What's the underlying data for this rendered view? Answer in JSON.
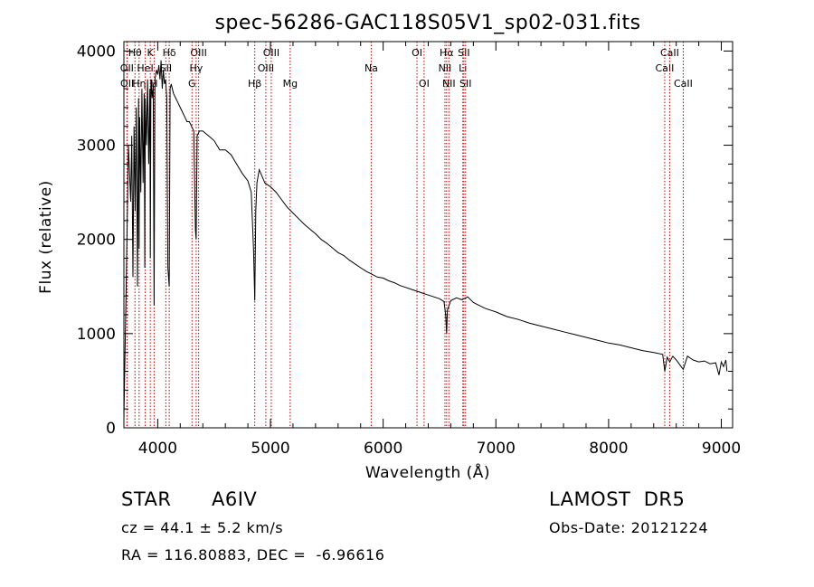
{
  "chart_data": {
    "type": "line",
    "title": "spec-56286-GAC118S05V1_sp02-031.fits",
    "xlabel": "Wavelength (Å)",
    "ylabel": "Flux (relative)",
    "xlim": [
      3700,
      9100
    ],
    "ylim": [
      0,
      4100
    ],
    "xticks": [
      4000,
      5000,
      6000,
      7000,
      8000,
      9000
    ],
    "yticks": [
      0,
      1000,
      2000,
      3000,
      4000
    ],
    "grid": false,
    "series": [
      {
        "x": [
          3700,
          3720,
          3740,
          3760,
          3770,
          3780,
          3790,
          3800,
          3810,
          3820,
          3830,
          3835,
          3840,
          3850,
          3860,
          3870,
          3880,
          3885,
          3890,
          3900,
          3910,
          3920,
          3930,
          3934,
          3940,
          3950,
          3960,
          3968,
          3975,
          3990,
          4000,
          4010,
          4020,
          4030,
          4040,
          4050,
          4060,
          4070,
          4080,
          4090,
          4102,
          4110,
          4120,
          4140,
          4160,
          4180,
          4200,
          4220,
          4240,
          4260,
          4280,
          4300,
          4320,
          4335,
          4341,
          4350,
          4370,
          4400,
          4450,
          4500,
          4550,
          4600,
          4650,
          4700,
          4750,
          4800,
          4830,
          4850,
          4861,
          4870,
          4880,
          4900,
          4950,
          5000,
          5050,
          5100,
          5150,
          5200,
          5250,
          5300,
          5350,
          5400,
          5450,
          5500,
          5550,
          5600,
          5650,
          5700,
          5750,
          5800,
          5850,
          5900,
          5950,
          6000,
          6050,
          6100,
          6150,
          6200,
          6250,
          6300,
          6350,
          6400,
          6450,
          6500,
          6540,
          6555,
          6563,
          6570,
          6600,
          6650,
          6700,
          6750,
          6800,
          6850,
          6900,
          6950,
          7000,
          7100,
          7200,
          7300,
          7400,
          7500,
          7600,
          7700,
          7800,
          7900,
          8000,
          8100,
          8200,
          8300,
          8400,
          8480,
          8498,
          8520,
          8542,
          8570,
          8600,
          8662,
          8700,
          8750,
          8800,
          8850,
          8900,
          8950,
          8980,
          9000,
          9020,
          9040,
          9050
        ],
        "y": [
          100,
          1500,
          3000,
          2400,
          3100,
          1600,
          3200,
          2300,
          3400,
          1500,
          3500,
          1900,
          3300,
          2500,
          3600,
          2600,
          3550,
          1700,
          3500,
          3000,
          3700,
          2800,
          3600,
          1800,
          3700,
          3500,
          3650,
          1300,
          3700,
          3800,
          3750,
          3850,
          3700,
          3900,
          3600,
          3800,
          3650,
          3700,
          3500,
          1700,
          1500,
          3600,
          3650,
          3550,
          3500,
          3450,
          3400,
          3350,
          3300,
          3250,
          3250,
          3200,
          3150,
          2100,
          2000,
          3100,
          3150,
          3150,
          3100,
          3050,
          2950,
          2950,
          2900,
          2800,
          2700,
          2620,
          2500,
          1900,
          1350,
          2300,
          2600,
          2740,
          2600,
          2560,
          2500,
          2420,
          2340,
          2280,
          2220,
          2160,
          2110,
          2060,
          2000,
          1960,
          1910,
          1860,
          1830,
          1780,
          1740,
          1700,
          1660,
          1630,
          1600,
          1590,
          1560,
          1540,
          1510,
          1490,
          1470,
          1450,
          1430,
          1410,
          1390,
          1370,
          1340,
          1200,
          1000,
          1250,
          1350,
          1380,
          1360,
          1390,
          1330,
          1300,
          1270,
          1250,
          1230,
          1180,
          1150,
          1110,
          1080,
          1050,
          1020,
          990,
          960,
          930,
          900,
          880,
          850,
          820,
          800,
          780,
          600,
          750,
          700,
          760,
          720,
          620,
          760,
          720,
          700,
          710,
          680,
          690,
          560,
          700,
          650,
          720,
          600
        ]
      }
    ],
    "lines": [
      {
        "name": "Hθ",
        "wave": 3798,
        "row": 0
      },
      {
        "name": "OII",
        "wave": 3727,
        "row": 1
      },
      {
        "name": "OII",
        "wave": 3729,
        "row": 2
      },
      {
        "name": "Hη",
        "wave": 3835,
        "row": 2
      },
      {
        "name": "HeI",
        "wave": 3889,
        "row": 1
      },
      {
        "name": "K",
        "wave": 3934,
        "row": 0
      },
      {
        "name": "H",
        "wave": 3968,
        "row": 2
      },
      {
        "name": "Hδ",
        "wave": 4102,
        "row": 0
      },
      {
        "name": "SII",
        "wave": 4072,
        "row": 1
      },
      {
        "name": "OIII",
        "wave": 4363,
        "row": 0
      },
      {
        "name": "Hγ",
        "wave": 4341,
        "row": 1
      },
      {
        "name": "G",
        "wave": 4304,
        "row": 2
      },
      {
        "name": "Hβ",
        "wave": 4861,
        "row": 2
      },
      {
        "name": "OIII",
        "wave": 4959,
        "row": 1
      },
      {
        "name": "OIII",
        "wave": 5007,
        "row": 0
      },
      {
        "name": "Mg",
        "wave": 5175,
        "row": 2
      },
      {
        "name": "Na",
        "wave": 5894,
        "row": 1
      },
      {
        "name": "OI",
        "wave": 6300,
        "row": 0
      },
      {
        "name": "OI",
        "wave": 6363,
        "row": 2
      },
      {
        "name": "NII",
        "wave": 6548,
        "row": 1
      },
      {
        "name": "Hα",
        "wave": 6563,
        "row": 0
      },
      {
        "name": "NII",
        "wave": 6583,
        "row": 2
      },
      {
        "name": "Li",
        "wave": 6707,
        "row": 1
      },
      {
        "name": "SII",
        "wave": 6716,
        "row": 0
      },
      {
        "name": "SII",
        "wave": 6731,
        "row": 2
      },
      {
        "name": "CaII",
        "wave": 8498,
        "row": 1
      },
      {
        "name": "CaII",
        "wave": 8542,
        "row": 0
      },
      {
        "name": "CaII",
        "wave": 8662,
        "row": 2
      }
    ]
  },
  "info": {
    "class": "STAR",
    "subclass": "A6IV",
    "survey": "LAMOST  DR5",
    "cz": "cz = 44.1 ± 5.2 km/s",
    "obs_date": "Obs-Date: 20121224",
    "coords": "RA = 116.80883, DEC =  -6.96616"
  }
}
